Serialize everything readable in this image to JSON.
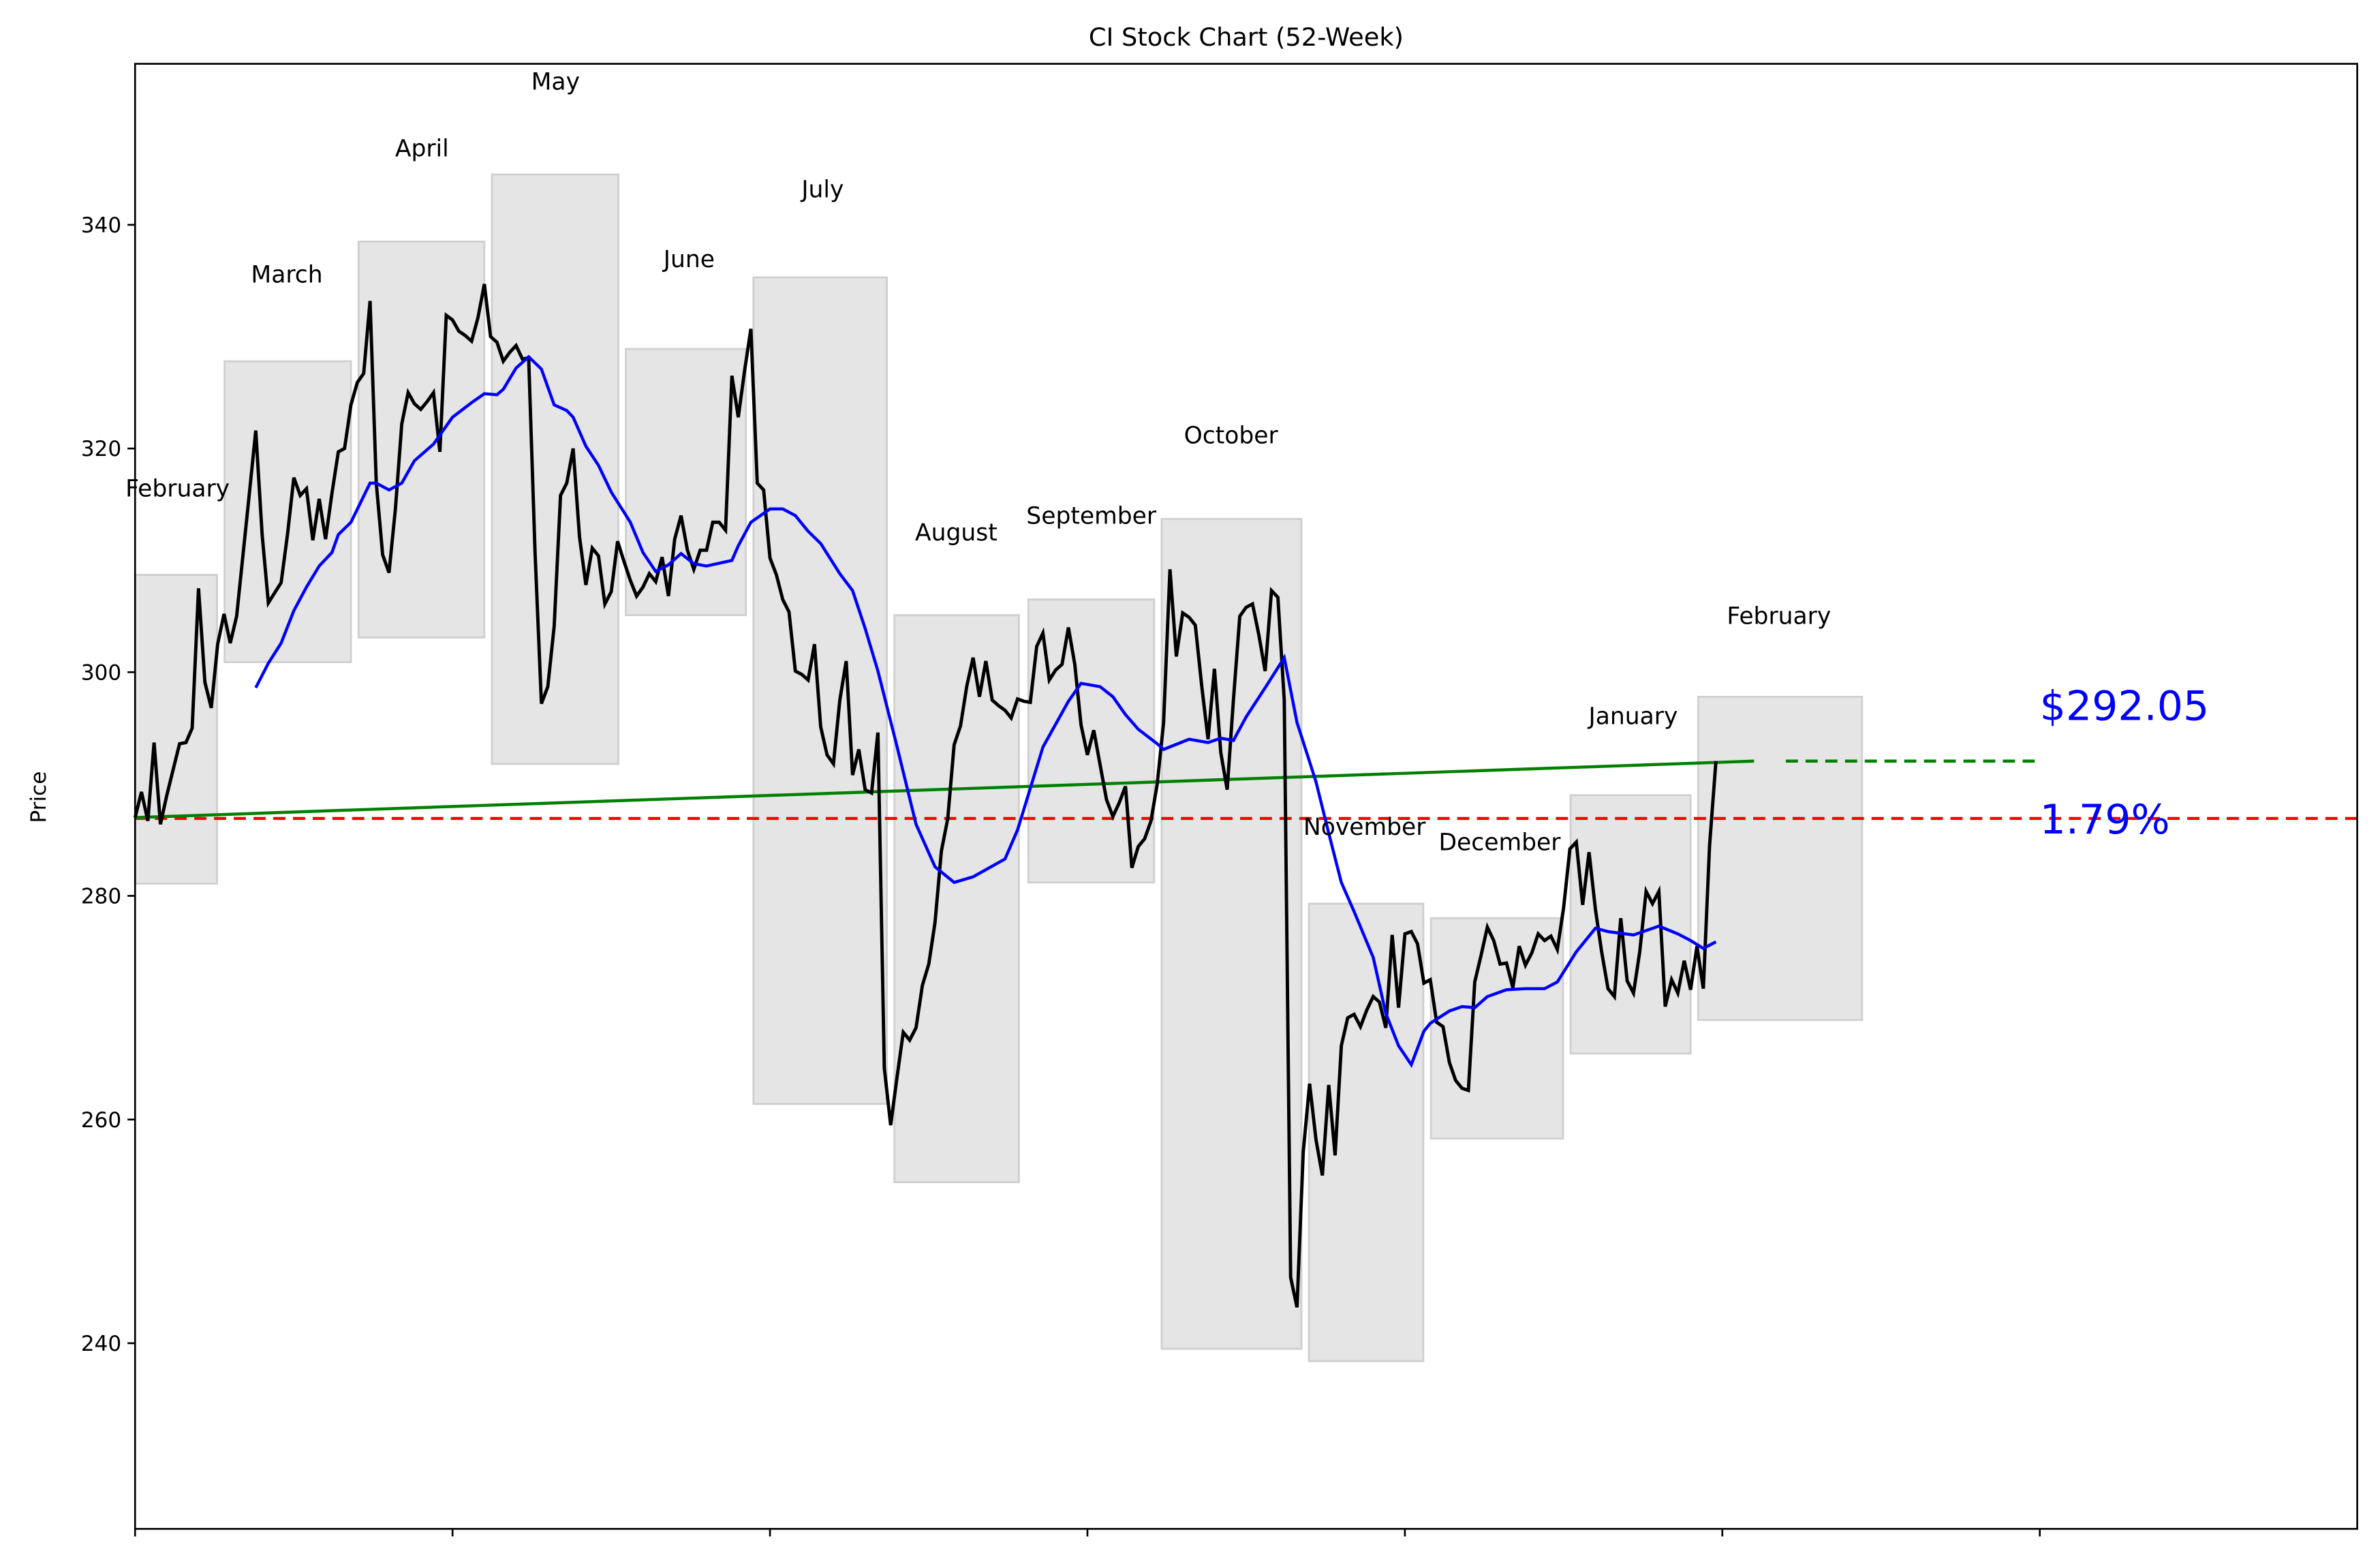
{
  "chart_data": {
    "type": "line",
    "title": "CI Stock Chart (52-Week)",
    "xlabel": "",
    "ylabel": "Price",
    "xlim": [
      0,
      350
    ],
    "ylim": [
      223.4,
      354.4
    ],
    "x_ticks": [
      0,
      50,
      100,
      150,
      200,
      250,
      300
    ],
    "x_tick_labels_shown": false,
    "y_ticks": [
      240,
      260,
      280,
      300,
      320,
      340
    ],
    "grid": false,
    "colors": {
      "close": "#000000",
      "moving_average": "#0000ff",
      "trend": "#008000",
      "baseline": "#ff0000",
      "month_box": "#e5e5e5",
      "annotation": "#0000ff"
    },
    "close": [
      287.0,
      289.3,
      286.7,
      293.7,
      286.4,
      289.0,
      291.3,
      293.6,
      293.7,
      295.0,
      307.5,
      299.1,
      296.8,
      302.5,
      305.2,
      302.6,
      305.0,
      310.5,
      316.0,
      321.6,
      312.3,
      306.2,
      307.1,
      308.0,
      312.3,
      317.4,
      315.8,
      316.4,
      311.8,
      315.5,
      311.9,
      316.0,
      319.7,
      320.0,
      323.9,
      325.9,
      326.7,
      333.2,
      316.9,
      310.5,
      308.9,
      314.6,
      322.2,
      325.0,
      324.0,
      323.5,
      324.2,
      325.0,
      319.7,
      331.9,
      331.5,
      330.5,
      330.1,
      329.6,
      331.7,
      334.7,
      330.0,
      329.5,
      327.8,
      328.6,
      329.2,
      328.0,
      328.1,
      310.7,
      297.2,
      298.7,
      304.1,
      315.8,
      316.9,
      320.0,
      312.1,
      307.8,
      311.1,
      310.4,
      306.1,
      307.2,
      311.7,
      309.9,
      308.2,
      306.8,
      307.6,
      308.8,
      308.1,
      310.3,
      306.8,
      311.9,
      314.0,
      310.9,
      309.2,
      310.9,
      310.9,
      313.4,
      313.4,
      312.7,
      326.5,
      322.8,
      327.0,
      330.7,
      316.9,
      316.3,
      310.2,
      308.7,
      306.5,
      305.4,
      300.1,
      299.8,
      299.3,
      302.5,
      295.1,
      292.6,
      291.8,
      297.5,
      301.0,
      290.8,
      293.1,
      289.5,
      289.2,
      294.6,
      264.6,
      259.5,
      263.7,
      267.8,
      267.1,
      268.2,
      272.0,
      273.9,
      277.6,
      284.0,
      286.9,
      293.5,
      295.2,
      298.8,
      301.3,
      297.8,
      301.0,
      297.5,
      297.0,
      296.6,
      295.9,
      297.6,
      297.4,
      297.3,
      302.3,
      303.5,
      299.3,
      300.2,
      300.7,
      304.0,
      300.7,
      295.3,
      292.6,
      294.8,
      291.7,
      288.6,
      287.1,
      288.3,
      289.8,
      282.5,
      284.4,
      285.1,
      286.7,
      290.0,
      295.5,
      309.2,
      301.4,
      305.3,
      304.9,
      304.2,
      298.8,
      294.0,
      300.3,
      292.8,
      289.5,
      297.5,
      305.0,
      305.8,
      306.1,
      303.3,
      300.1,
      307.3,
      306.7,
      297.5,
      245.9,
      243.2,
      257.1,
      263.2,
      258.2,
      255.0,
      263.1,
      256.8,
      266.6,
      269.1,
      269.4,
      268.3,
      269.8,
      271.0,
      270.5,
      268.2,
      276.5,
      270.0,
      276.6,
      276.8,
      275.7,
      272.2,
      272.5,
      268.7,
      268.3,
      265.1,
      263.5,
      262.8,
      262.6,
      272.3,
      274.7,
      277.2,
      276.0,
      273.9,
      274.0,
      271.8,
      275.5,
      273.8,
      274.9,
      276.6,
      276.0,
      276.4,
      275.2,
      278.9,
      284.2,
      284.8,
      279.2,
      283.9,
      278.8,
      275.0,
      271.7,
      271.0,
      278.0,
      272.4,
      271.3,
      275.0,
      280.4,
      279.3,
      280.4,
      270.1,
      272.5,
      271.3,
      274.2,
      271.6,
      275.5,
      271.7,
      284.5,
      292.05
    ],
    "moving_average": {
      "x": [
        19,
        21,
        23,
        25,
        27,
        29,
        31,
        32,
        34,
        37,
        38,
        40,
        42,
        44,
        47,
        50,
        53,
        55,
        57,
        58,
        60,
        62,
        64,
        66,
        68,
        69,
        71,
        73,
        75,
        78,
        80,
        82,
        84,
        86,
        88,
        90,
        94,
        95,
        97,
        100,
        102,
        104,
        106,
        108,
        111,
        113,
        115,
        117,
        120,
        123,
        126,
        129,
        132,
        137,
        139,
        143,
        147,
        149,
        152,
        154,
        156,
        158,
        161,
        162,
        166,
        169,
        171,
        173,
        175,
        178,
        181,
        183,
        186,
        188,
        190,
        192,
        195,
        197,
        199,
        201,
        203,
        204,
        207,
        209,
        211,
        213,
        216,
        219,
        222,
        224,
        227,
        230,
        232,
        236,
        240,
        243,
        245,
        247,
        249
      ],
      "y": [
        298.6,
        300.8,
        302.6,
        305.5,
        307.6,
        309.5,
        310.7,
        312.3,
        313.4,
        316.9,
        316.9,
        316.3,
        316.9,
        318.9,
        320.4,
        322.8,
        324.1,
        324.9,
        324.8,
        325.3,
        327.2,
        328.2,
        327.1,
        323.9,
        323.4,
        322.8,
        320.2,
        318.5,
        316.1,
        313.4,
        310.7,
        309.0,
        309.6,
        310.6,
        309.7,
        309.5,
        310.0,
        311.3,
        313.4,
        314.6,
        314.6,
        314.0,
        312.6,
        311.5,
        308.8,
        307.3,
        303.9,
        300.1,
        293.4,
        286.4,
        282.6,
        281.2,
        281.7,
        283.3,
        285.9,
        293.3,
        297.4,
        299.0,
        298.7,
        297.8,
        296.2,
        294.9,
        293.6,
        293.1,
        294.0,
        293.7,
        294.1,
        293.9,
        296.0,
        298.6,
        301.3,
        295.5,
        290.2,
        285.6,
        281.2,
        278.6,
        274.5,
        269.5,
        266.6,
        264.9,
        267.9,
        268.6,
        269.7,
        270.1,
        270.0,
        271.0,
        271.6,
        271.7,
        271.7,
        272.3,
        275.0,
        277.1,
        276.8,
        276.5,
        277.3,
        276.6,
        276.0,
        275.3,
        275.9
      ]
    },
    "trend_line": {
      "start": [
        0,
        287.0
      ],
      "end": [
        255,
        292.05
      ]
    },
    "trend_projection": {
      "start": [
        260,
        292.05
      ],
      "end": [
        300,
        292.05
      ]
    },
    "baseline_price": 286.92,
    "month_ranges": [
      {
        "label": "February",
        "start": 0,
        "end": 12.9,
        "low": 281.1,
        "high": 308.7
      },
      {
        "label": "March",
        "start": 14.1,
        "end": 34,
        "low": 300.9,
        "high": 327.8
      },
      {
        "label": "April",
        "start": 35.2,
        "end": 55,
        "low": 303.1,
        "high": 338.5
      },
      {
        "label": "May",
        "start": 56.2,
        "end": 76.1,
        "low": 291.8,
        "high": 344.5
      },
      {
        "label": "June",
        "start": 77.3,
        "end": 96.2,
        "low": 305.1,
        "high": 328.9
      },
      {
        "label": "July",
        "start": 97.4,
        "end": 118.4,
        "low": 261.4,
        "high": 335.3
      },
      {
        "label": "August",
        "start": 119.6,
        "end": 139.2,
        "low": 254.4,
        "high": 305.1
      },
      {
        "label": "September",
        "start": 140.7,
        "end": 160.5,
        "low": 281.2,
        "high": 306.5
      },
      {
        "label": "October",
        "start": 161.7,
        "end": 183.7,
        "low": 239.5,
        "high": 313.7
      },
      {
        "label": "November",
        "start": 184.9,
        "end": 202.9,
        "low": 238.4,
        "high": 279.3
      },
      {
        "label": "December",
        "start": 204.1,
        "end": 224.9,
        "low": 258.3,
        "high": 278.0
      },
      {
        "label": "January",
        "start": 226.1,
        "end": 245,
        "low": 265.9,
        "high": 289.0
      },
      {
        "label": "February",
        "start": 246.2,
        "end": 272,
        "low": 268.9,
        "high": 297.8
      }
    ],
    "annotations": {
      "price": "$292.05",
      "change": "1.79%"
    }
  }
}
